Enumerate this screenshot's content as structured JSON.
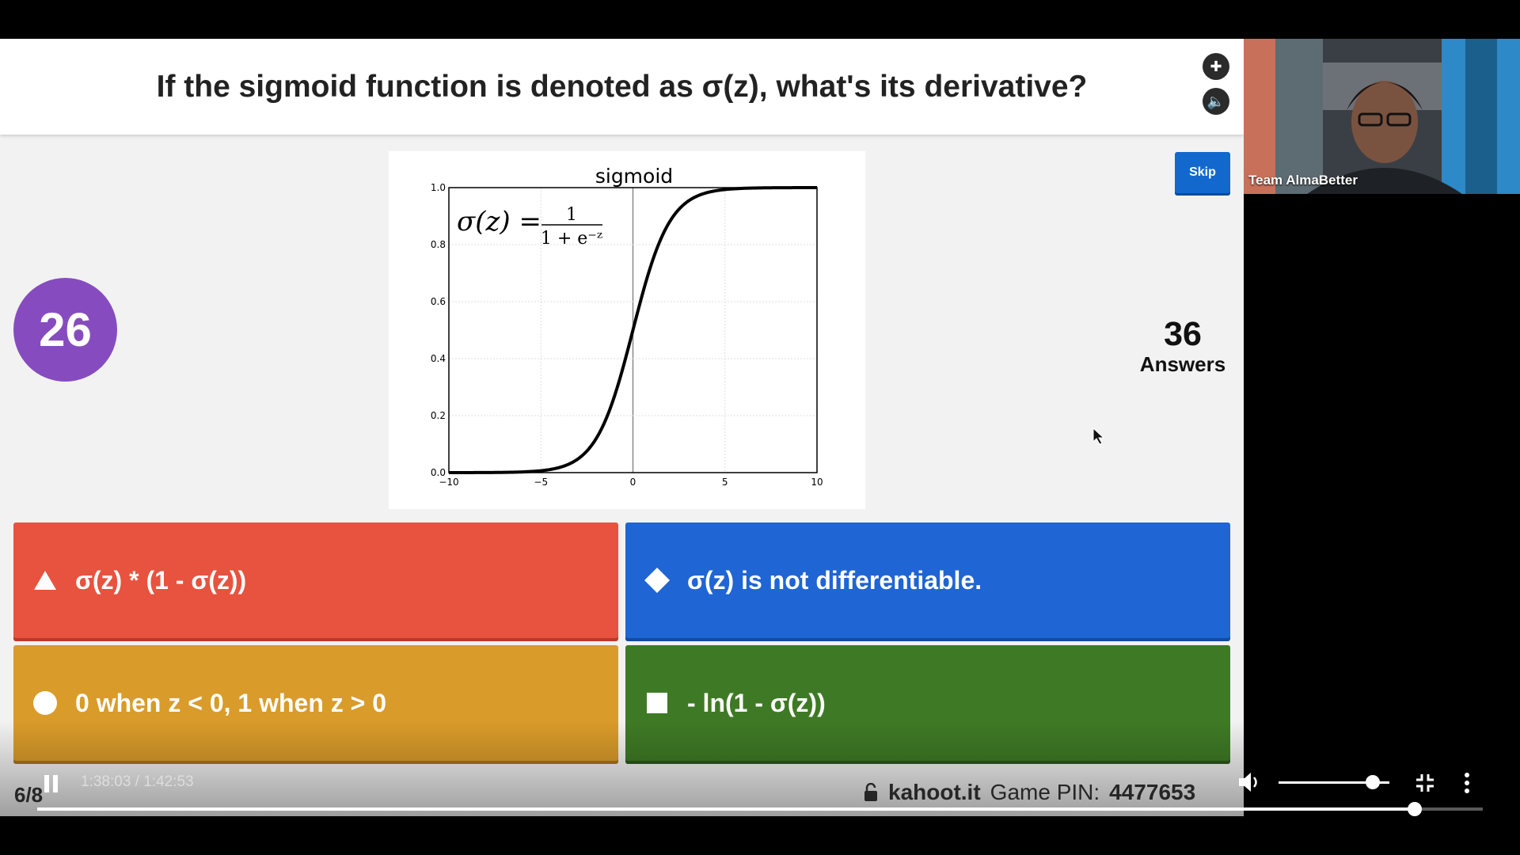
{
  "question": "If the sigmoid function is denoted as σ(z), what's its derivative?",
  "timer": "26",
  "skip_label": "Skip",
  "answers_count": {
    "number": "36",
    "label": "Answers"
  },
  "answers": [
    {
      "shape": "triangle-icon",
      "text": "σ(z) * (1 - σ(z))",
      "color": "#e7533e"
    },
    {
      "shape": "diamond-icon",
      "text": "σ(z) is not differentiable.",
      "color": "#1f65d4"
    },
    {
      "shape": "circle-icon",
      "text": "0 when z < 0, 1 when z > 0",
      "color": "#d99b2a"
    },
    {
      "shape": "square-icon",
      "text": "- ln(1 - σ(z))",
      "color": "#3e7a25"
    }
  ],
  "question_counter": "6/8",
  "kahoot": {
    "site": "kahoot.it",
    "pin_label": "Game PIN:",
    "pin": "4477653"
  },
  "webcam_name": "Team AlmaBetter",
  "video": {
    "time": "1:38:03 / 1:42:53",
    "progress": 0.953,
    "volume": 0.85
  },
  "chart_data": {
    "type": "line",
    "title": "sigmoid",
    "formula_lhs": "σ(z) =",
    "formula_num": "1",
    "formula_den": "1 + e⁻ᶻ",
    "xlim": [
      -10,
      10
    ],
    "ylim": [
      0,
      1
    ],
    "xticks": [
      "−10",
      "−5",
      "0",
      "5",
      "10"
    ],
    "yticks": [
      "0.0",
      "0.2",
      "0.4",
      "0.6",
      "0.8",
      "1.0"
    ],
    "function": "sigmoid",
    "grid": true
  }
}
